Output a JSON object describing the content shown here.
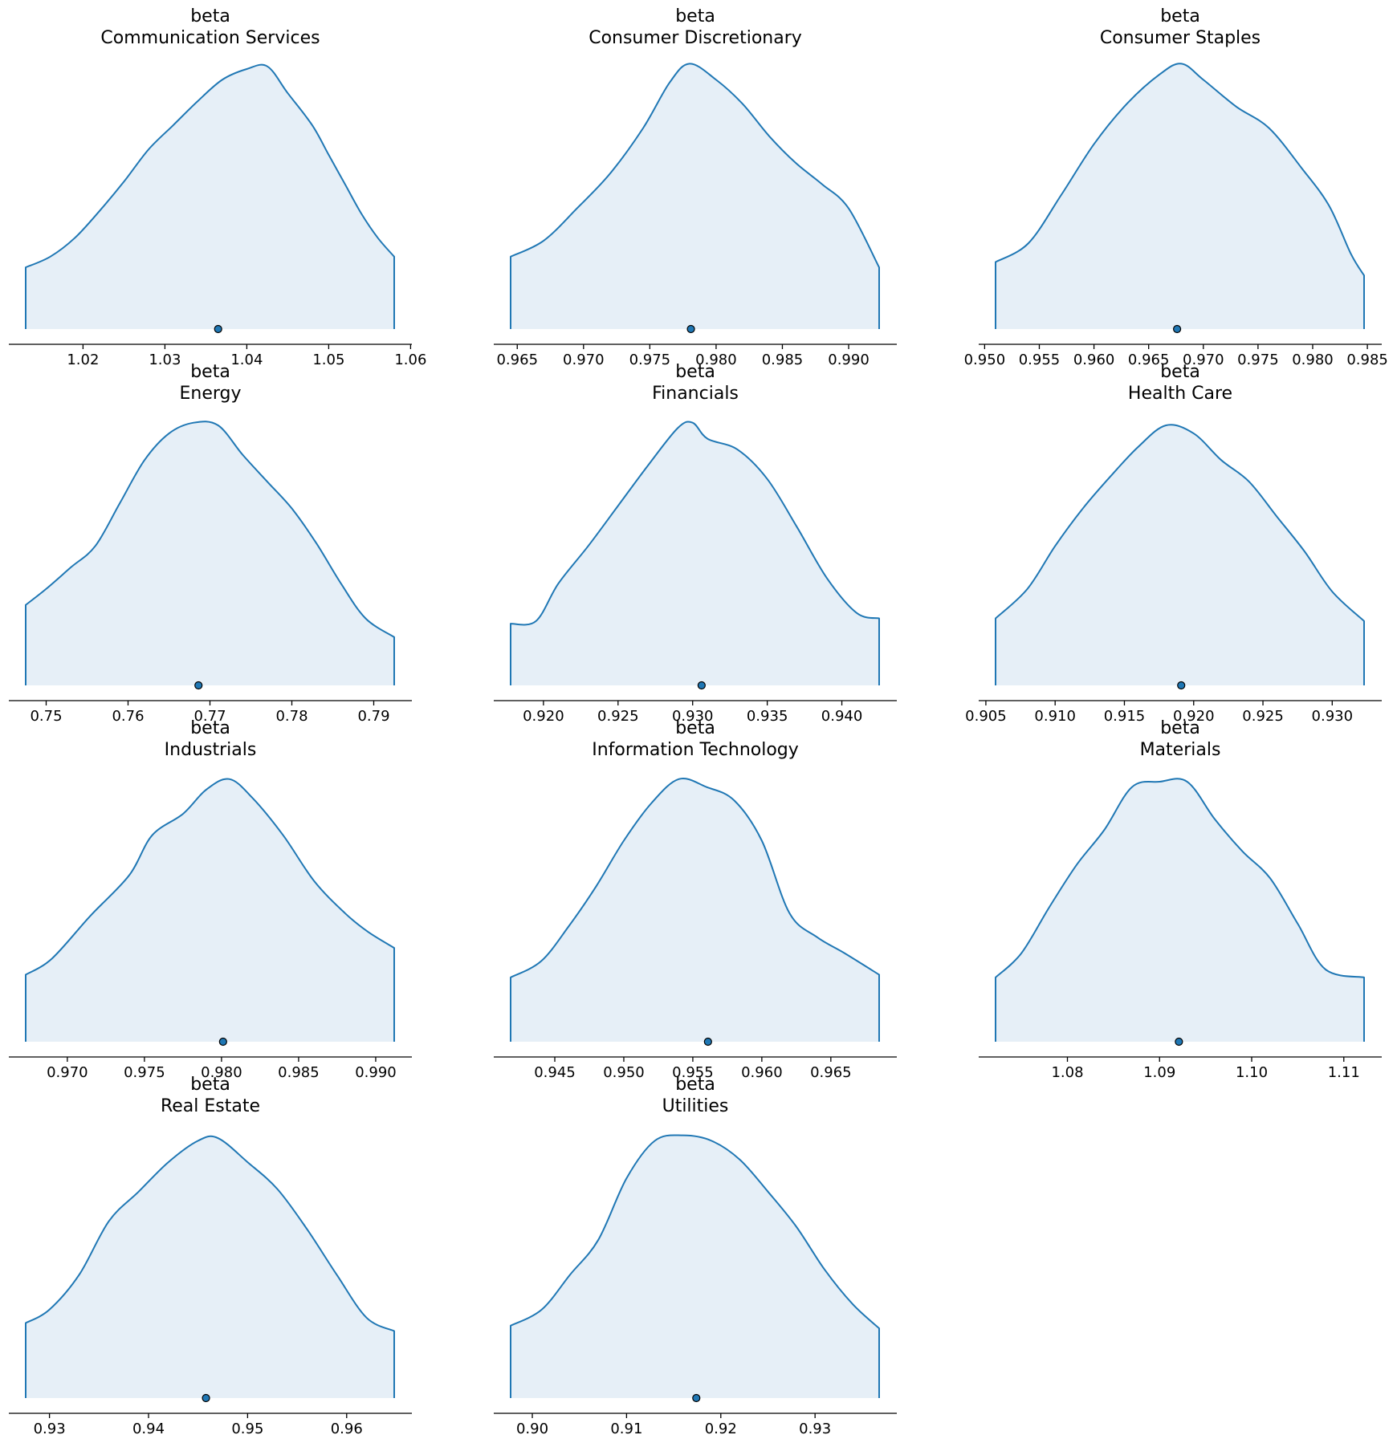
{
  "colors": {
    "line": "#1f77b4",
    "fill": "#e6eff7",
    "point": "#1f77b4",
    "point_edge": "#000000",
    "axis": "#000000"
  },
  "chart_data": [
    {
      "type": "area",
      "title_lines": [
        "beta",
        "Communication Services"
      ],
      "xlim": [
        1.013,
        1.058
      ],
      "ticks": [
        1.02,
        1.03,
        1.04,
        1.05,
        1.06
      ],
      "tick_labels": [
        "1.02",
        "1.03",
        "1.04",
        "1.05",
        "1.06"
      ],
      "point_estimate": 1.0365,
      "density": [
        [
          1.013,
          0.23
        ],
        [
          1.016,
          0.27
        ],
        [
          1.019,
          0.34
        ],
        [
          1.022,
          0.44
        ],
        [
          1.025,
          0.55
        ],
        [
          1.028,
          0.67
        ],
        [
          1.031,
          0.76
        ],
        [
          1.034,
          0.85
        ],
        [
          1.037,
          0.93
        ],
        [
          1.04,
          0.97
        ],
        [
          1.0425,
          0.98
        ],
        [
          1.045,
          0.88
        ],
        [
          1.048,
          0.76
        ],
        [
          1.05,
          0.65
        ],
        [
          1.052,
          0.54
        ],
        [
          1.054,
          0.43
        ],
        [
          1.056,
          0.34
        ],
        [
          1.058,
          0.27
        ]
      ]
    },
    {
      "type": "area",
      "title_lines": [
        "beta",
        "Consumer Discretionary"
      ],
      "xlim": [
        0.9645,
        0.9923
      ],
      "ticks": [
        0.965,
        0.97,
        0.975,
        0.98,
        0.985,
        0.99
      ],
      "tick_labels": [
        "0.965",
        "0.970",
        "0.975",
        "0.980",
        "0.985",
        "0.990"
      ],
      "point_estimate": 0.9781,
      "density": [
        [
          0.9645,
          0.27
        ],
        [
          0.967,
          0.33
        ],
        [
          0.9695,
          0.45
        ],
        [
          0.972,
          0.58
        ],
        [
          0.9745,
          0.75
        ],
        [
          0.9765,
          0.92
        ],
        [
          0.978,
          0.99
        ],
        [
          0.98,
          0.93
        ],
        [
          0.982,
          0.84
        ],
        [
          0.984,
          0.72
        ],
        [
          0.986,
          0.62
        ],
        [
          0.988,
          0.54
        ],
        [
          0.99,
          0.45
        ],
        [
          0.9923,
          0.23
        ]
      ]
    },
    {
      "type": "area",
      "title_lines": [
        "beta",
        "Consumer Staples"
      ],
      "xlim": [
        0.951,
        0.9847
      ],
      "ticks": [
        0.95,
        0.955,
        0.96,
        0.965,
        0.97,
        0.975,
        0.98,
        0.985
      ],
      "tick_labels": [
        "0.950",
        "0.955",
        "0.960",
        "0.965",
        "0.970",
        "0.975",
        "0.980",
        "0.985"
      ],
      "point_estimate": 0.9676,
      "density": [
        [
          0.951,
          0.25
        ],
        [
          0.954,
          0.32
        ],
        [
          0.957,
          0.5
        ],
        [
          0.96,
          0.69
        ],
        [
          0.963,
          0.84
        ],
        [
          0.966,
          0.95
        ],
        [
          0.968,
          0.99
        ],
        [
          0.97,
          0.93
        ],
        [
          0.973,
          0.83
        ],
        [
          0.976,
          0.75
        ],
        [
          0.979,
          0.6
        ],
        [
          0.9815,
          0.46
        ],
        [
          0.9835,
          0.28
        ],
        [
          0.9847,
          0.2
        ]
      ]
    },
    {
      "type": "area",
      "title_lines": [
        "beta",
        "Energy"
      ],
      "xlim": [
        0.7475,
        0.7925
      ],
      "ticks": [
        0.75,
        0.76,
        0.77,
        0.78,
        0.79
      ],
      "tick_labels": [
        "0.75",
        "0.76",
        "0.77",
        "0.78",
        "0.79"
      ],
      "point_estimate": 0.7686,
      "density": [
        [
          0.7475,
          0.3
        ],
        [
          0.75,
          0.36
        ],
        [
          0.753,
          0.44
        ],
        [
          0.756,
          0.52
        ],
        [
          0.759,
          0.68
        ],
        [
          0.762,
          0.84
        ],
        [
          0.765,
          0.94
        ],
        [
          0.768,
          0.98
        ],
        [
          0.771,
          0.97
        ],
        [
          0.774,
          0.86
        ],
        [
          0.777,
          0.76
        ],
        [
          0.78,
          0.66
        ],
        [
          0.783,
          0.53
        ],
        [
          0.786,
          0.38
        ],
        [
          0.789,
          0.25
        ],
        [
          0.7925,
          0.18
        ]
      ]
    },
    {
      "type": "area",
      "title_lines": [
        "beta",
        "Financials"
      ],
      "xlim": [
        0.9178,
        0.9425
      ],
      "ticks": [
        0.92,
        0.925,
        0.93,
        0.935,
        0.94
      ],
      "tick_labels": [
        "0.920",
        "0.925",
        "0.930",
        "0.935",
        "0.940"
      ],
      "point_estimate": 0.9306,
      "density": [
        [
          0.9178,
          0.23
        ],
        [
          0.9195,
          0.24
        ],
        [
          0.921,
          0.38
        ],
        [
          0.923,
          0.52
        ],
        [
          0.925,
          0.67
        ],
        [
          0.927,
          0.82
        ],
        [
          0.929,
          0.96
        ],
        [
          0.93,
          0.98
        ],
        [
          0.931,
          0.92
        ],
        [
          0.933,
          0.88
        ],
        [
          0.935,
          0.77
        ],
        [
          0.937,
          0.59
        ],
        [
          0.939,
          0.4
        ],
        [
          0.941,
          0.27
        ],
        [
          0.9425,
          0.25
        ]
      ]
    },
    {
      "type": "area",
      "title_lines": [
        "beta",
        "Health Care"
      ],
      "xlim": [
        0.9057,
        0.9323
      ],
      "ticks": [
        0.905,
        0.91,
        0.915,
        0.92,
        0.925,
        0.93
      ],
      "tick_labels": [
        "0.905",
        "0.910",
        "0.915",
        "0.920",
        "0.925",
        "0.930"
      ],
      "point_estimate": 0.9191,
      "density": [
        [
          0.9057,
          0.25
        ],
        [
          0.908,
          0.36
        ],
        [
          0.91,
          0.52
        ],
        [
          0.912,
          0.66
        ],
        [
          0.914,
          0.78
        ],
        [
          0.916,
          0.89
        ],
        [
          0.918,
          0.97
        ],
        [
          0.92,
          0.94
        ],
        [
          0.922,
          0.84
        ],
        [
          0.924,
          0.76
        ],
        [
          0.926,
          0.63
        ],
        [
          0.928,
          0.5
        ],
        [
          0.93,
          0.35
        ],
        [
          0.9323,
          0.24
        ]
      ]
    },
    {
      "type": "area",
      "title_lines": [
        "beta",
        "Industrials"
      ],
      "xlim": [
        0.9673,
        0.9912
      ],
      "ticks": [
        0.97,
        0.975,
        0.98,
        0.985,
        0.99
      ],
      "tick_labels": [
        "0.970",
        "0.975",
        "0.980",
        "0.985",
        "0.990"
      ],
      "point_estimate": 0.9801,
      "density": [
        [
          0.9673,
          0.25
        ],
        [
          0.969,
          0.31
        ],
        [
          0.9715,
          0.47
        ],
        [
          0.974,
          0.62
        ],
        [
          0.9755,
          0.77
        ],
        [
          0.9775,
          0.85
        ],
        [
          0.979,
          0.94
        ],
        [
          0.9805,
          0.98
        ],
        [
          0.982,
          0.91
        ],
        [
          0.984,
          0.77
        ],
        [
          0.986,
          0.6
        ],
        [
          0.988,
          0.48
        ],
        [
          0.9895,
          0.41
        ],
        [
          0.9912,
          0.35
        ]
      ]
    },
    {
      "type": "area",
      "title_lines": [
        "beta",
        "Information Technology"
      ],
      "xlim": [
        0.9418,
        0.9685
      ],
      "ticks": [
        0.945,
        0.95,
        0.955,
        0.96,
        0.965
      ],
      "tick_labels": [
        "0.945",
        "0.950",
        "0.955",
        "0.960",
        "0.965"
      ],
      "point_estimate": 0.9561,
      "density": [
        [
          0.9418,
          0.24
        ],
        [
          0.944,
          0.3
        ],
        [
          0.946,
          0.43
        ],
        [
          0.948,
          0.58
        ],
        [
          0.95,
          0.75
        ],
        [
          0.952,
          0.89
        ],
        [
          0.954,
          0.98
        ],
        [
          0.956,
          0.95
        ],
        [
          0.958,
          0.9
        ],
        [
          0.96,
          0.75
        ],
        [
          0.962,
          0.48
        ],
        [
          0.964,
          0.39
        ],
        [
          0.966,
          0.33
        ],
        [
          0.9685,
          0.25
        ]
      ]
    },
    {
      "type": "area",
      "title_lines": [
        "beta",
        "Materials"
      ],
      "xlim": [
        1.0722,
        1.1122
      ],
      "ticks": [
        1.08,
        1.09,
        1.1,
        1.11
      ],
      "tick_labels": [
        "1.08",
        "1.09",
        "1.10",
        "1.11"
      ],
      "point_estimate": 1.0921,
      "density": [
        [
          1.0722,
          0.24
        ],
        [
          1.075,
          0.33
        ],
        [
          1.078,
          0.5
        ],
        [
          1.081,
          0.66
        ],
        [
          1.084,
          0.79
        ],
        [
          1.087,
          0.95
        ],
        [
          1.09,
          0.97
        ],
        [
          1.093,
          0.97
        ],
        [
          1.096,
          0.83
        ],
        [
          1.099,
          0.71
        ],
        [
          1.102,
          0.61
        ],
        [
          1.105,
          0.44
        ],
        [
          1.108,
          0.27
        ],
        [
          1.1122,
          0.24
        ]
      ]
    },
    {
      "type": "area",
      "title_lines": [
        "beta",
        "Real Estate"
      ],
      "xlim": [
        0.9276,
        0.9648
      ],
      "ticks": [
        0.93,
        0.94,
        0.95,
        0.96
      ],
      "tick_labels": [
        "0.93",
        "0.94",
        "0.95",
        "0.96"
      ],
      "point_estimate": 0.9458,
      "density": [
        [
          0.9276,
          0.28
        ],
        [
          0.93,
          0.33
        ],
        [
          0.933,
          0.46
        ],
        [
          0.936,
          0.66
        ],
        [
          0.939,
          0.77
        ],
        [
          0.942,
          0.88
        ],
        [
          0.945,
          0.96
        ],
        [
          0.947,
          0.97
        ],
        [
          0.95,
          0.88
        ],
        [
          0.953,
          0.78
        ],
        [
          0.956,
          0.63
        ],
        [
          0.959,
          0.46
        ],
        [
          0.962,
          0.3
        ],
        [
          0.9648,
          0.25
        ]
      ]
    },
    {
      "type": "area",
      "title_lines": [
        "beta",
        "Utilities"
      ],
      "xlim": [
        0.8977,
        0.9368
      ],
      "ticks": [
        0.9,
        0.91,
        0.92,
        0.93
      ],
      "tick_labels": [
        "0.90",
        "0.91",
        "0.92",
        "0.93"
      ],
      "point_estimate": 0.9174,
      "density": [
        [
          0.8977,
          0.27
        ],
        [
          0.901,
          0.33
        ],
        [
          0.904,
          0.46
        ],
        [
          0.907,
          0.59
        ],
        [
          0.91,
          0.82
        ],
        [
          0.913,
          0.96
        ],
        [
          0.916,
          0.98
        ],
        [
          0.919,
          0.96
        ],
        [
          0.922,
          0.89
        ],
        [
          0.925,
          0.77
        ],
        [
          0.928,
          0.64
        ],
        [
          0.931,
          0.48
        ],
        [
          0.934,
          0.35
        ],
        [
          0.9368,
          0.26
        ]
      ]
    }
  ]
}
